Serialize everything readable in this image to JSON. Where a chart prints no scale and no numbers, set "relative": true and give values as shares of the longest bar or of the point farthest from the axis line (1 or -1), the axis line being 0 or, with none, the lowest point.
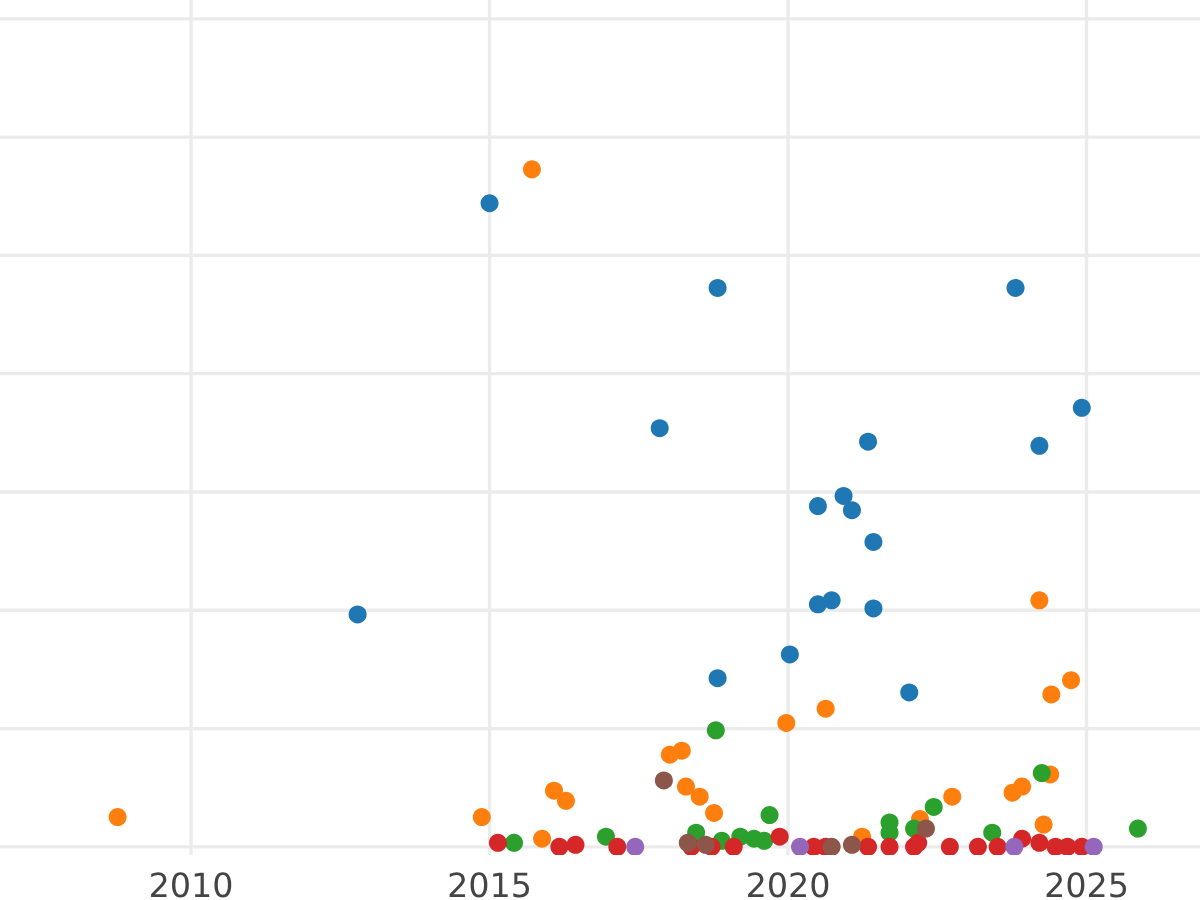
{
  "chart_data": {
    "type": "scatter",
    "relative": true,
    "grid": true,
    "marker": "circle",
    "xlim": [
      2006.8,
      2026.9
    ],
    "xticks": [
      2010,
      2015,
      2020,
      2025
    ],
    "tick_labels": "x",
    "series": [
      {
        "color": "#1f77b4",
        "x": [
          2012.79,
          2015.0,
          2018.82,
          2023.81,
          2017.85,
          2024.92,
          2021.34,
          2024.21,
          2020.5,
          2020.93,
          2021.07,
          2021.43,
          2020.5,
          2020.73,
          2021.43,
          2020.03,
          2018.82,
          2022.03
        ],
        "values": [
          0.343,
          0.95,
          0.825,
          0.825,
          0.618,
          0.648,
          0.598,
          0.592,
          0.503,
          0.518,
          0.497,
          0.45,
          0.358,
          0.364,
          0.352,
          0.284,
          0.249,
          0.228
        ]
      },
      {
        "color": "#ff7f0e",
        "x": [
          2015.71,
          2024.21,
          2024.41,
          2024.74,
          2020.63,
          2019.97,
          2008.77,
          2014.87,
          2016.08,
          2016.28,
          2015.88,
          2018.02,
          2018.22,
          2018.29,
          2018.52,
          2018.76,
          2022.75,
          2023.76,
          2023.92,
          2024.39,
          2024.28,
          2021.24,
          2022.21
        ],
        "values": [
          1.0,
          0.364,
          0.225,
          0.246,
          0.204,
          0.183,
          0.044,
          0.044,
          0.083,
          0.068,
          0.012,
          0.136,
          0.142,
          0.089,
          0.074,
          0.05,
          0.074,
          0.08,
          0.089,
          0.107,
          0.033,
          0.015,
          0.041
        ]
      },
      {
        "color": "#2ca02c",
        "x": [
          2018.79,
          2024.25,
          2019.69,
          2025.86,
          2022.44,
          2021.7,
          2015.41,
          2016.95,
          2018.46,
          2019.2,
          2019.43,
          2019.6,
          2018.89,
          2022.11,
          2023.42,
          2021.7
        ],
        "values": [
          0.172,
          0.109,
          0.047,
          0.027,
          0.059,
          0.036,
          0.006,
          0.015,
          0.021,
          0.015,
          0.012,
          0.009,
          0.009,
          0.027,
          0.021,
          0.021
        ]
      },
      {
        "color": "#d62728",
        "x": [
          2015.14,
          2016.17,
          2016.44,
          2017.14,
          2019.86,
          2019.09,
          2018.72,
          2018.38,
          2020.43,
          2020.63,
          2021.34,
          2021.7,
          2022.11,
          2022.71,
          2023.18,
          2023.51,
          2023.92,
          2024.21,
          2024.48,
          2024.68,
          2024.92,
          2022.18
        ],
        "values": [
          0.006,
          0,
          0.003,
          0,
          0.015,
          0,
          0,
          0,
          0,
          0,
          0,
          0,
          0,
          0,
          0,
          0,
          0.012,
          0.006,
          0,
          0,
          0,
          0.006
        ]
      },
      {
        "color": "#9467bd",
        "x": [
          2017.44,
          2020.2,
          2023.79,
          2025.12
        ],
        "values": [
          0,
          0,
          0,
          0
        ]
      },
      {
        "color": "#8c564b",
        "x": [
          2017.92,
          2018.32,
          2018.62,
          2021.07,
          2022.31,
          2020.73
        ],
        "values": [
          0.098,
          0.006,
          0.003,
          0.003,
          0.027,
          0
        ]
      }
    ]
  }
}
